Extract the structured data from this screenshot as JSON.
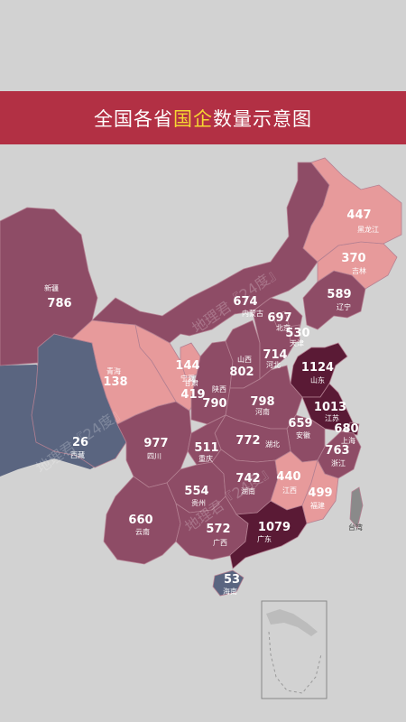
{
  "title": {
    "pre": "全国各省",
    "highlight": "国企",
    "post": "数量示意图"
  },
  "colors": {
    "background": "#d2d2d2",
    "banner": "#b23044",
    "highlight": "#f6d832",
    "low": "#ea9b9b",
    "mid": "#8e4c66",
    "dark": "#5a1a35",
    "blue": "#5a6580"
  },
  "provinces": [
    {
      "id": "heilongjiang",
      "name": "黑龙江",
      "value": "447"
    },
    {
      "id": "jilin",
      "name": "吉林",
      "value": "370"
    },
    {
      "id": "liaoning",
      "name": "辽宁",
      "value": "589"
    },
    {
      "id": "xinjiang",
      "name": "新疆",
      "value": "786"
    },
    {
      "id": "neimenggu",
      "name": "内蒙古",
      "value": "674"
    },
    {
      "id": "beijing",
      "name": "北京",
      "value": "697"
    },
    {
      "id": "tianjin",
      "name": "天津",
      "value": "530"
    },
    {
      "id": "hebei",
      "name": "河北",
      "value": "714"
    },
    {
      "id": "shanxi",
      "name": "山西",
      "value": "802"
    },
    {
      "id": "shandong",
      "name": "山东",
      "value": "1124"
    },
    {
      "id": "ningxia",
      "name": "宁夏",
      "value": "144"
    },
    {
      "id": "qinghai",
      "name": "青海",
      "value": "138"
    },
    {
      "id": "gansu",
      "name": "甘肃",
      "value": "419"
    },
    {
      "id": "shaanxi",
      "name": "陕西",
      "value": "790"
    },
    {
      "id": "henan",
      "name": "河南",
      "value": "798"
    },
    {
      "id": "jiangsu",
      "name": "江苏",
      "value": "1013"
    },
    {
      "id": "shanghai",
      "name": "上海",
      "value": "680"
    },
    {
      "id": "anhui",
      "name": "安徽",
      "value": "659"
    },
    {
      "id": "xizang",
      "name": "西藏",
      "value": "26"
    },
    {
      "id": "sichuan",
      "name": "四川",
      "value": "977"
    },
    {
      "id": "chongqing",
      "name": "重庆",
      "value": "511"
    },
    {
      "id": "hubei",
      "name": "湖北",
      "value": "772"
    },
    {
      "id": "zhejiang",
      "name": "浙江",
      "value": "763"
    },
    {
      "id": "guizhou",
      "name": "贵州",
      "value": "554"
    },
    {
      "id": "hunan",
      "name": "湖南",
      "value": "742"
    },
    {
      "id": "jiangxi",
      "name": "江西",
      "value": "440"
    },
    {
      "id": "fujian",
      "name": "福建",
      "value": "499"
    },
    {
      "id": "yunnan",
      "name": "云南",
      "value": "660"
    },
    {
      "id": "guangxi",
      "name": "广西",
      "value": "572"
    },
    {
      "id": "guangdong",
      "name": "广东",
      "value": "1079"
    },
    {
      "id": "hainan",
      "name": "海南",
      "value": "53"
    },
    {
      "id": "taiwan",
      "name": "台湾",
      "value": ""
    }
  ],
  "watermark": "地理君『24度』"
}
